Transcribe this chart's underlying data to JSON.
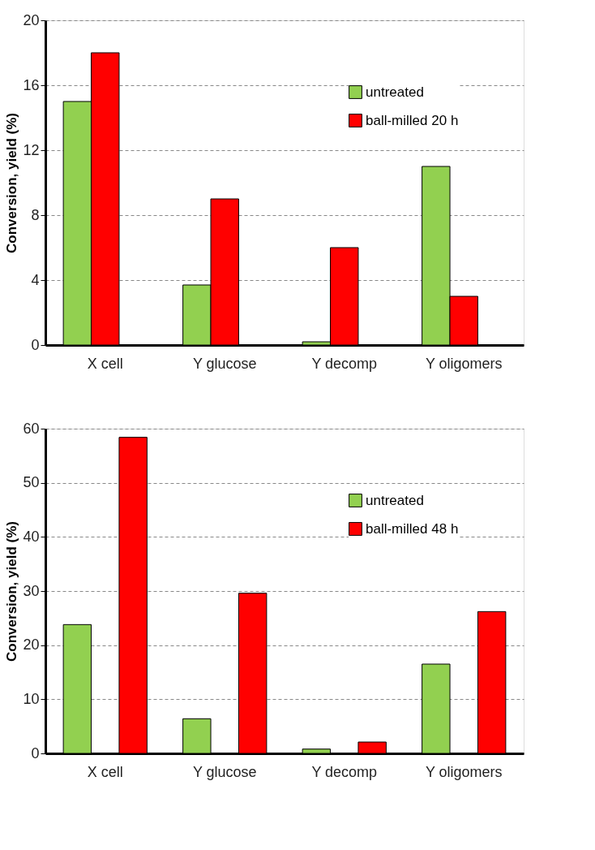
{
  "chart_data": [
    {
      "type": "bar",
      "ylabel": "Conversion, yield (%)",
      "categories": [
        "X cell",
        "Y glucose",
        "Y decomp",
        "Y oligomers"
      ],
      "series": [
        {
          "name": "untreated",
          "color": "#92d050",
          "values": [
            15,
            3.7,
            0.2,
            11
          ]
        },
        {
          "name": "ball-milled 20 h",
          "color": "#ff0000",
          "values": [
            18,
            9,
            6,
            3
          ]
        }
      ],
      "ylim": [
        0,
        20
      ],
      "yticks": [
        0,
        4,
        8,
        12,
        16,
        20
      ],
      "grid": "y",
      "legend": "top right"
    },
    {
      "type": "bar",
      "ylabel": "Conversion, yield (%)",
      "categories": [
        "X cell",
        "Y glucose",
        "Y decomp",
        "Y oligomers"
      ],
      "series": [
        {
          "name": "untreated",
          "color": "#92d050",
          "values": [
            23.8,
            6.4,
            0.8,
            16.5
          ]
        },
        {
          "name": "ball-milled 48 h",
          "color": "#ff0000",
          "values": [
            58.4,
            29.6,
            2.1,
            26.2
          ]
        }
      ],
      "ylim": [
        0,
        60
      ],
      "yticks": [
        0,
        10,
        20,
        30,
        40,
        50,
        60
      ],
      "grid": "y",
      "legend": "top right"
    }
  ]
}
